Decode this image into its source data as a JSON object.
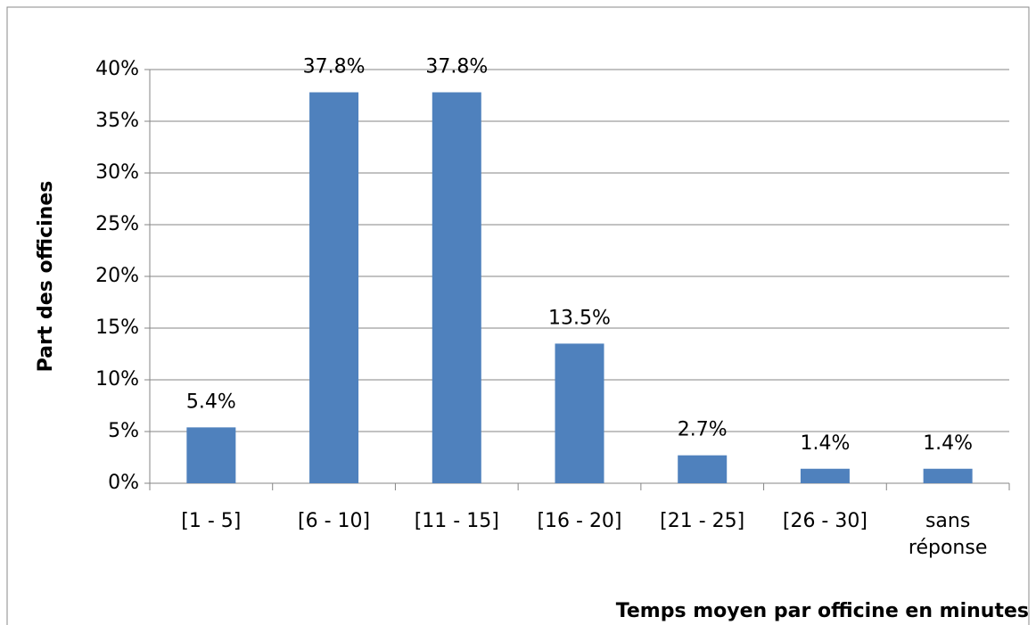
{
  "chart_data": {
    "type": "bar",
    "categories": [
      "[1 - 5]",
      "[6 - 10]",
      "[11 - 15]",
      "[16 - 20]",
      "[21 - 25]",
      "[26 - 30]",
      "sans réponse"
    ],
    "values": [
      5.4,
      37.8,
      37.8,
      13.5,
      2.7,
      1.4,
      1.4
    ],
    "value_labels": [
      "5.4%",
      "37.8%",
      "37.8%",
      "13.5%",
      "2.7%",
      "1.4%",
      "1.4%"
    ],
    "color": "#4f81bd",
    "ylabel": "Part des officines",
    "xlabel": "Temps moyen par officine en minutes",
    "ylim": [
      0,
      40
    ],
    "yticks": [
      {
        "value": 0,
        "label": "0%"
      },
      {
        "value": 5,
        "label": "5%"
      },
      {
        "value": 10,
        "label": "10%"
      },
      {
        "value": 15,
        "label": "15%"
      },
      {
        "value": 20,
        "label": "20%"
      },
      {
        "value": 25,
        "label": "25%"
      },
      {
        "value": 30,
        "label": "30%"
      },
      {
        "value": 35,
        "label": "35%"
      },
      {
        "value": 40,
        "label": "40%"
      }
    ],
    "grid": true
  }
}
